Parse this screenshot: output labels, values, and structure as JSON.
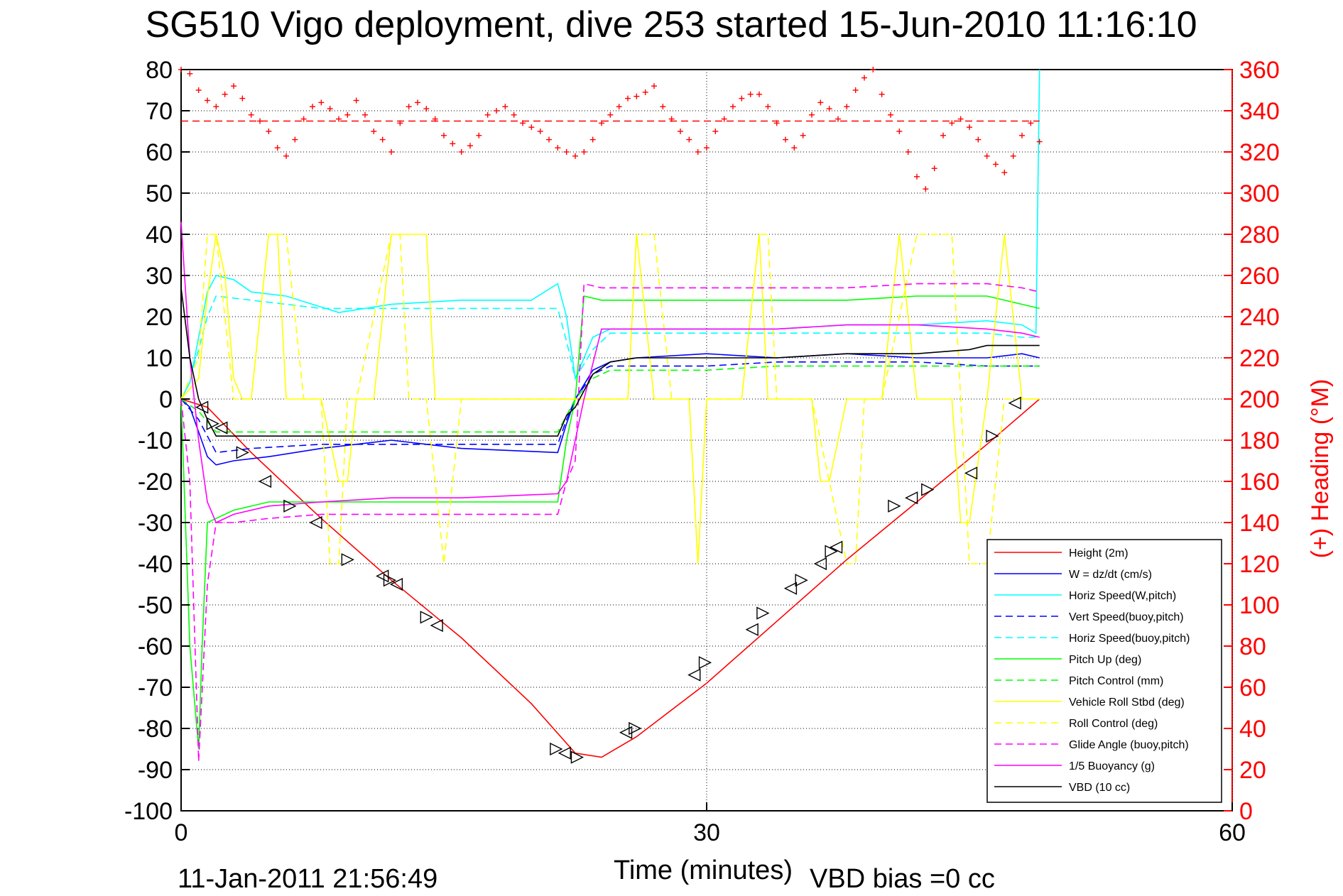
{
  "chart_data": {
    "type": "line",
    "title": "SG510 Vigo deployment, dive 253 started 15-Jun-2010 11:16:10",
    "xlabel": "Time (minutes)",
    "ylabel_right": "(+) Heading (°M)",
    "footer_left": "11-Jan-2011 21:56:49",
    "footer_right": "VBD bias =0 cc",
    "xlim": [
      0,
      60
    ],
    "ylim": [
      -100,
      80
    ],
    "ylim_right": [
      0,
      360
    ],
    "x_ticks": [
      0,
      30,
      60
    ],
    "x_tick_labels": [
      "0",
      "30",
      "60"
    ],
    "y_ticks": [
      80,
      70,
      60,
      50,
      40,
      30,
      20,
      10,
      0,
      -10,
      -20,
      -30,
      -40,
      -50,
      -60,
      -70,
      -80,
      -90,
      -100
    ],
    "y_tick_labels": [
      "80",
      "70",
      "60",
      "50",
      "40",
      "30",
      "20",
      "10",
      "0",
      "-10",
      "-20",
      "-30",
      "-40",
      "-50",
      "-60",
      "-70",
      "-80",
      "-90",
      "-100"
    ],
    "y_right_ticks": [
      360,
      340,
      320,
      300,
      280,
      260,
      240,
      220,
      200,
      180,
      160,
      140,
      120,
      100,
      80,
      60,
      40,
      20,
      0
    ],
    "y_right_tick_labels": [
      "360",
      "340",
      "320",
      "300",
      "280",
      "260",
      "240",
      "220",
      "200",
      "180",
      "160",
      "140",
      "120",
      "100",
      "80",
      "60",
      "40",
      "20",
      "0"
    ],
    "grid": true,
    "legend_position": "bottom-right",
    "series": [
      {
        "name": "Height (2m)",
        "color": "#ff0000",
        "style": "solid",
        "x": [
          0,
          1.5,
          4,
          8,
          12,
          16,
          20,
          22.5,
          24,
          26,
          30,
          34,
          38,
          42,
          46,
          49
        ],
        "y": [
          0,
          -2,
          -13,
          -29,
          -44,
          -58,
          -74,
          -86,
          -87,
          -82,
          -69,
          -54,
          -39,
          -25,
          -11,
          0
        ]
      },
      {
        "name": "W = dz/dt (cm/s)",
        "color": "#0000ff",
        "style": "solid",
        "x": [
          0,
          0.5,
          1,
          1.5,
          2,
          3,
          5,
          8,
          12,
          16,
          21.5,
          22,
          22.5,
          23.5,
          24.5,
          26,
          30,
          34,
          38,
          42,
          46,
          48,
          49
        ],
        "y": [
          0,
          -2,
          -8,
          -14,
          -16,
          -15,
          -14,
          -12,
          -10,
          -12,
          -13,
          -6,
          0,
          7,
          9,
          10,
          11,
          10,
          11,
          10,
          10,
          11,
          10
        ]
      },
      {
        "name": "Horiz Speed(W,pitch)",
        "color": "#00ffff",
        "style": "solid",
        "x": [
          0,
          0.5,
          1,
          1.5,
          2,
          3,
          4,
          6,
          9,
          12,
          16,
          20,
          21.5,
          22,
          22.5,
          23.5,
          24.5,
          26,
          30,
          34,
          38,
          42,
          46,
          48,
          48.8,
          49
        ],
        "y": [
          0,
          4,
          15,
          26,
          30,
          29,
          26,
          25,
          21,
          23,
          24,
          24,
          28,
          20,
          5,
          15,
          17,
          17,
          17,
          17,
          18,
          18,
          19,
          18,
          16,
          80
        ]
      },
      {
        "name": "Vert Speed(buoy,pitch)",
        "color": "#0000ff",
        "style": "dashed",
        "x": [
          0,
          1,
          2,
          4,
          8,
          12,
          16,
          21.5,
          22,
          22.5,
          23.5,
          24.5,
          30,
          34,
          38,
          42,
          46,
          48,
          49
        ],
        "y": [
          0,
          -5,
          -13,
          -12,
          -11,
          -11,
          -11,
          -11,
          -5,
          0,
          6,
          8,
          8,
          9,
          9,
          9,
          8,
          8,
          8
        ]
      },
      {
        "name": "Horiz Speed(buoy,pitch)",
        "color": "#00ffff",
        "style": "dashed",
        "x": [
          0,
          0.5,
          1,
          1.5,
          2,
          4,
          8,
          12,
          16,
          21.5,
          22,
          22.5,
          23.5,
          24.5,
          30,
          34,
          38,
          42,
          46,
          48,
          49
        ],
        "y": [
          0,
          5,
          12,
          20,
          25,
          24,
          22,
          22,
          22,
          22,
          14,
          5,
          12,
          16,
          16,
          16,
          16,
          16,
          16,
          15,
          15
        ]
      },
      {
        "name": "Pitch Up (deg)",
        "color": "#00ff00",
        "style": "solid",
        "x": [
          0,
          0.5,
          1,
          1.2,
          1.5,
          2,
          3,
          5,
          8,
          12,
          16,
          21.5,
          22,
          22.5,
          23,
          24,
          26,
          30,
          34,
          38,
          42,
          46,
          48,
          49
        ],
        "y": [
          0,
          -60,
          -85,
          -60,
          -30,
          -29,
          -27,
          -25,
          -25,
          -25,
          -25,
          -25,
          -10,
          0,
          25,
          24,
          24,
          24,
          24,
          24,
          25,
          25,
          23,
          22
        ]
      },
      {
        "name": "Pitch Control (mm)",
        "color": "#00ff00",
        "style": "dashed",
        "x": [
          0,
          1,
          2,
          4,
          8,
          12,
          16,
          21.5,
          22,
          22.5,
          23.5,
          24.5,
          30,
          34,
          38,
          42,
          46,
          48,
          49
        ],
        "y": [
          0,
          -3,
          -8,
          -8,
          -8,
          -8,
          -8,
          -8,
          -4,
          0,
          5,
          7,
          7,
          8,
          8,
          8,
          8,
          8,
          8
        ]
      },
      {
        "name": "Vehicle Roll Stbd (deg)",
        "color": "#ffff00",
        "style": "solid",
        "x": [
          0,
          1,
          1.5,
          2,
          2.5,
          3,
          3.5,
          4,
          5,
          5.5,
          6,
          7,
          8,
          9,
          9.5,
          10,
          11,
          12,
          14,
          14.5,
          15,
          16,
          20,
          21.5,
          22,
          24,
          25.5,
          26,
          27,
          28,
          29,
          29.5,
          30,
          31,
          32,
          33,
          33.5,
          34,
          35,
          36,
          36.5,
          37,
          38,
          40,
          41,
          42,
          44,
          44.5,
          45,
          46,
          47,
          48,
          49
        ],
        "y": [
          0,
          5,
          25,
          40,
          30,
          5,
          0,
          0,
          40,
          40,
          0,
          0,
          0,
          -20,
          -20,
          0,
          0,
          40,
          40,
          0,
          0,
          0,
          0,
          0,
          0,
          0,
          0,
          40,
          0,
          0,
          0,
          -40,
          0,
          0,
          0,
          40,
          0,
          0,
          0,
          0,
          -20,
          -20,
          0,
          0,
          40,
          0,
          0,
          -30,
          -30,
          0,
          40,
          0,
          0
        ]
      },
      {
        "name": "Roll Control (deg)",
        "color": "#ffff00",
        "style": "dashed",
        "x": [
          0,
          1,
          1.5,
          2,
          3,
          4,
          5,
          6,
          7,
          8,
          8.5,
          9,
          9.5,
          10,
          12,
          12.5,
          13,
          14,
          15,
          16,
          18,
          20,
          21.5,
          22,
          24,
          25.5,
          26,
          27,
          28,
          29,
          29.5,
          30,
          32,
          33,
          33.5,
          34,
          36,
          38,
          38.5,
          39,
          40,
          42,
          44,
          44.5,
          45,
          46,
          47,
          48,
          49
        ],
        "y": [
          0,
          10,
          40,
          40,
          0,
          0,
          40,
          40,
          0,
          0,
          -40,
          -40,
          0,
          0,
          40,
          40,
          0,
          0,
          -40,
          0,
          0,
          0,
          0,
          0,
          0,
          0,
          40,
          40,
          0,
          0,
          -40,
          0,
          0,
          40,
          40,
          0,
          0,
          -40,
          -40,
          0,
          0,
          40,
          40,
          0,
          -40,
          -40,
          0,
          0,
          0
        ]
      },
      {
        "name": "Glide Angle (buoy,pitch)",
        "color": "#ff00ff",
        "style": "dashed",
        "x": [
          0,
          0.5,
          1,
          1.5,
          2,
          3,
          5,
          8,
          12,
          16,
          21.5,
          22,
          22.5,
          23,
          24,
          26,
          30,
          34,
          38,
          42,
          46,
          48,
          49
        ],
        "y": [
          0,
          -20,
          -88,
          -45,
          -30,
          -30,
          -29,
          -28,
          -28,
          -28,
          -28,
          -20,
          -15,
          28,
          27,
          27,
          27,
          27,
          27,
          28,
          28,
          27,
          26
        ]
      },
      {
        "name": "1/5 Buoyancy (g)",
        "color": "#ff00ff",
        "style": "solid",
        "x": [
          0,
          0.5,
          1,
          1.5,
          2,
          3,
          5,
          8,
          12,
          16,
          21.5,
          22,
          22.5,
          23,
          24,
          26,
          30,
          34,
          38,
          42,
          46,
          48,
          49
        ],
        "y": [
          43,
          10,
          -10,
          -25,
          -30,
          -28,
          -26,
          -25,
          -24,
          -24,
          -23,
          -20,
          -10,
          0,
          17,
          17,
          17,
          17,
          18,
          18,
          17,
          16,
          15
        ]
      },
      {
        "name": "VBD (10 cc)",
        "color": "#000000",
        "style": "solid",
        "x": [
          0,
          0.5,
          1,
          1.5,
          2,
          3,
          5,
          8,
          12,
          16,
          21.5,
          22,
          22.5,
          23,
          23.5,
          24.5,
          26,
          30,
          33,
          34,
          38,
          42,
          45,
          46,
          48,
          49
        ],
        "y": [
          27,
          10,
          0,
          -5,
          -9,
          -9,
          -9,
          -9,
          -9,
          -9,
          -9,
          -4,
          -2,
          2,
          6,
          9,
          10,
          10,
          10,
          10,
          11,
          11,
          12,
          13,
          13,
          13
        ]
      },
      {
        "name": "heading",
        "axis": "right",
        "color": "#ff0000",
        "style": "markers",
        "x": [
          0,
          0.5,
          1,
          1.5,
          2,
          2.5,
          3,
          3.5,
          4,
          4.5,
          5,
          5.5,
          6,
          6.5,
          7,
          7.5,
          8,
          8.5,
          9,
          9.5,
          10,
          10.5,
          11,
          11.5,
          12,
          12.5,
          13,
          13.5,
          14,
          14.5,
          15,
          15.5,
          16,
          16.5,
          17,
          17.5,
          18,
          18.5,
          19,
          19.5,
          20,
          20.5,
          21,
          21.5,
          22,
          22.5,
          23,
          23.5,
          24,
          24.5,
          25,
          25.5,
          26,
          26.5,
          27,
          27.5,
          28,
          28.5,
          29,
          29.5,
          30,
          30.5,
          31,
          31.5,
          32,
          32.5,
          33,
          33.5,
          34,
          34.5,
          35,
          35.5,
          36,
          36.5,
          37,
          37.5,
          38,
          38.5,
          39,
          39.5,
          40,
          40.5,
          41,
          41.5,
          42,
          42.5,
          43,
          43.5,
          44,
          44.5,
          45,
          45.5,
          46,
          46.5,
          47,
          47.5,
          48,
          48.5,
          49
        ],
        "y": [
          360,
          358,
          350,
          345,
          342,
          348,
          352,
          346,
          338,
          335,
          330,
          322,
          318,
          326,
          336,
          342,
          344,
          341,
          336,
          338,
          345,
          338,
          330,
          326,
          320,
          334,
          342,
          344,
          341,
          336,
          328,
          324,
          320,
          323,
          328,
          338,
          340,
          342,
          338,
          334,
          332,
          330,
          326,
          322,
          320,
          318,
          320,
          326,
          334,
          338,
          342,
          346,
          347,
          349,
          352,
          342,
          336,
          330,
          326,
          320,
          322,
          330,
          336,
          342,
          346,
          348,
          348,
          342,
          334,
          326,
          322,
          328,
          338,
          344,
          341,
          336,
          342,
          350,
          356,
          360,
          348,
          338,
          330,
          320,
          308,
          302,
          312,
          328,
          334,
          336,
          332,
          326,
          318,
          314,
          310,
          318,
          328,
          334,
          325
        ]
      },
      {
        "name": "heading_mean",
        "axis": "right",
        "color": "#ff0000",
        "style": "dashed",
        "x": [
          0,
          49
        ],
        "y": [
          335,
          335
        ]
      }
    ],
    "markers": {
      "color": "#000000",
      "shape": "triangle",
      "x": [
        1.2,
        1.8,
        2.3,
        3.5,
        4.8,
        6.2,
        7.7,
        9.5,
        11.5,
        11.9,
        12.3,
        14.0,
        14.6,
        21.4,
        21.9,
        22.6,
        25.4,
        25.9,
        29.3,
        29.9,
        32.6,
        33.2,
        34.8,
        35.4,
        36.5,
        37.1,
        37.4,
        40.7,
        41.7,
        42.6,
        45.1,
        46.3,
        47.6
      ],
      "y": [
        -2,
        -6,
        -7,
        -13,
        -20,
        -26,
        -30,
        -39,
        -43,
        -44,
        -45,
        -53,
        -55,
        -85,
        -86,
        -87,
        -81,
        -80,
        -67,
        -64,
        -56,
        -52,
        -46,
        -44,
        -40,
        -37,
        -36,
        -26,
        -24,
        -22,
        -18,
        -9,
        -1
      ]
    },
    "vertical_marker_x": 30
  }
}
